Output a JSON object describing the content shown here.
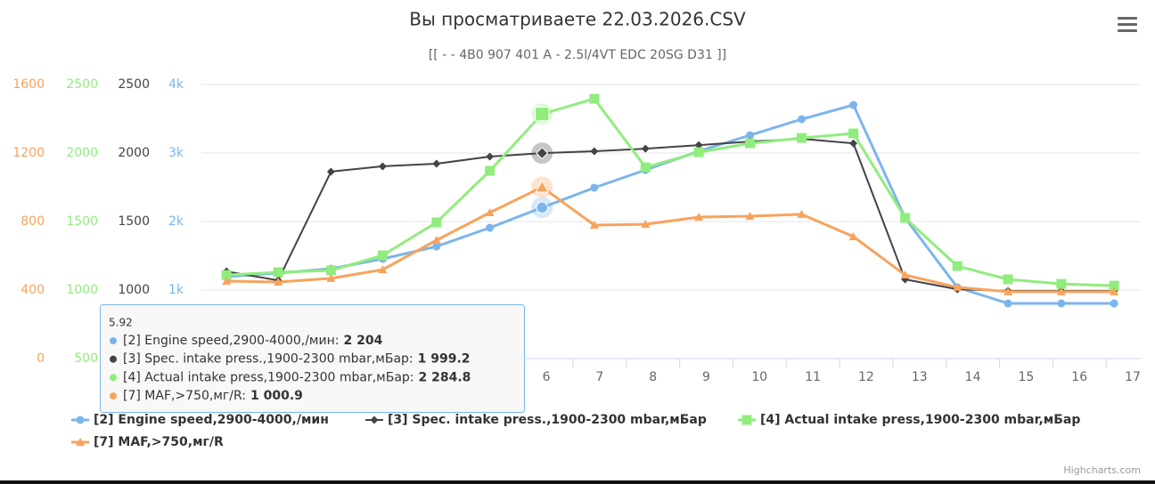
{
  "chart_data": {
    "type": "line",
    "title": "Вы просматриваете 22.03.2026.CSV",
    "subtitle": "[[ - - 4B0 907 401 A - 2.5l/4VT EDC 20SG D31 ]]",
    "credit": "Highcharts.com",
    "grid": true,
    "legend": "bottom",
    "xlim": [
      -0.47,
      17.15
    ],
    "xticks": [
      6,
      7,
      8,
      9,
      10,
      11,
      12,
      13,
      14,
      15,
      16,
      17
    ],
    "yaxes": [
      {
        "color": "#f7a35c",
        "lim": [
          0,
          1600
        ],
        "ticks": [
          0,
          400,
          800,
          1200,
          1600
        ]
      },
      {
        "color": "#90ed7d",
        "lim": [
          500,
          2500
        ],
        "ticks": [
          500,
          1000,
          1500,
          2000,
          2500
        ]
      },
      {
        "color": "#434348",
        "lim": [
          500,
          2500
        ],
        "ticks": [
          1000,
          1500,
          2000,
          2500
        ]
      },
      {
        "color": "#7cb5ec",
        "lim": [
          0,
          4000
        ],
        "ticks": [
          {
            "value": 1000,
            "label": "1k"
          },
          {
            "value": 2000,
            "label": "2k"
          },
          {
            "value": 3000,
            "label": "3k"
          },
          {
            "value": 4000,
            "label": "4k"
          }
        ]
      }
    ],
    "x": [
      0,
      0.97,
      1.96,
      2.93,
      3.94,
      4.94,
      5.92,
      6.9,
      7.86,
      8.86,
      9.82,
      10.79,
      11.76,
      12.73,
      13.71,
      14.66,
      15.66,
      16.65
    ],
    "series": [
      {
        "name": "[2] Engine speed,2900-4000,/мин",
        "color": "#7cb5ec",
        "marker": "circle",
        "yaxis": 3,
        "values": [
          1195,
          1247,
          1312,
          1455,
          1636,
          1909,
          2204,
          2494,
          2753,
          3026,
          3260,
          3494,
          3701,
          2052,
          1039,
          805,
          805,
          805
        ]
      },
      {
        "name": "[3] Spec. intake press.,1900-2300 mbar,мБар",
        "color": "#434348",
        "marker": "diamond",
        "yaxis": 2,
        "values": [
          1136,
          1071,
          1864,
          1903,
          1922,
          1974,
          1999.2,
          2013,
          2032,
          2058,
          2084,
          2104,
          2071,
          1078,
          1006,
          994,
          994,
          994
        ]
      },
      {
        "name": "[4] Actual intake press,1900-2300 mbar,мБар",
        "color": "#90ed7d",
        "marker": "square",
        "yaxis": 1,
        "values": [
          1110,
          1130,
          1143,
          1253,
          1494,
          1870,
          2284.8,
          2396,
          1896,
          2006,
          2071,
          2110,
          2143,
          1526,
          1175,
          1078,
          1045,
          1032
        ]
      },
      {
        "name": "[7] MAF,>750,мг/R",
        "color": "#f7a35c",
        "marker": "triangle",
        "yaxis": 0,
        "values": [
          452,
          447,
          468,
          519,
          691,
          852,
          1000.9,
          779,
          784,
          826,
          831,
          842,
          712,
          488,
          416,
          390,
          390,
          390
        ]
      }
    ],
    "tooltip": {
      "x": 5.92,
      "index": 6,
      "labels": [
        "[2] Engine speed,2900-4000,/мин:",
        "[3] Spec. intake press.,1900-2300 mbar,мБар:",
        "[4] Actual intake press,1900-2300 mbar,мБар:",
        "[7] MAF,>750,мг/R:"
      ],
      "value_labels": [
        "2 204",
        "1 999.2",
        "2 284.8",
        "1 000.9"
      ]
    }
  }
}
